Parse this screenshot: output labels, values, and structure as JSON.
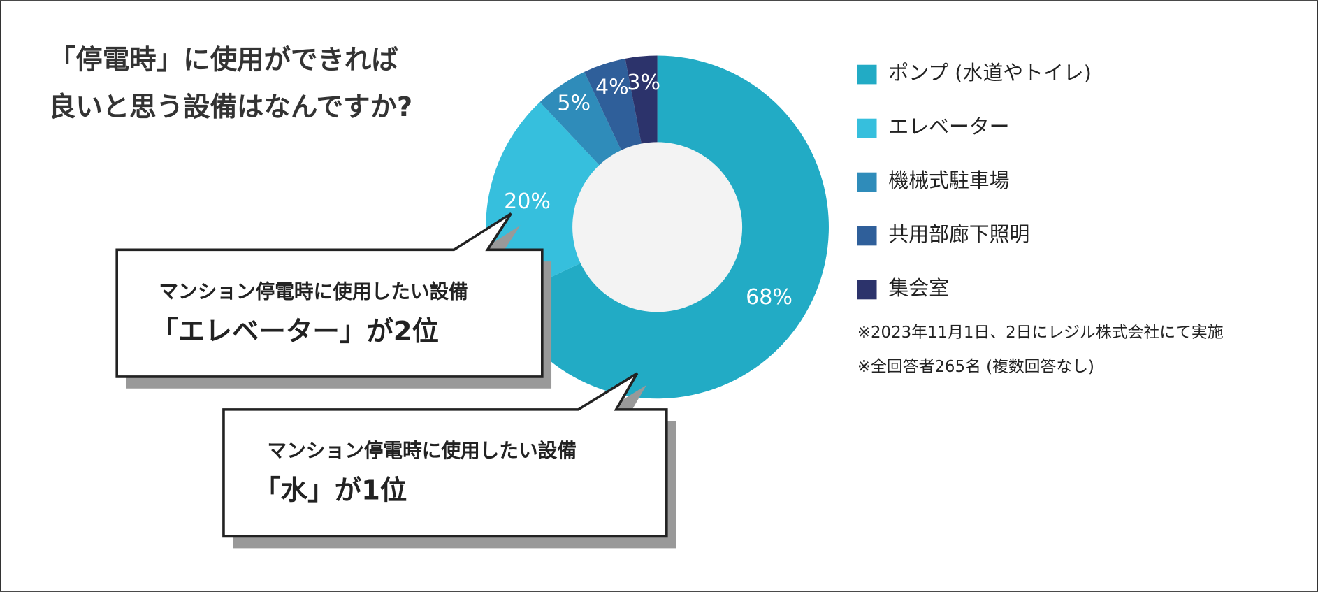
{
  "chart_data": {
    "type": "pie",
    "donut": true,
    "title": [
      "「停電時」に使用ができれば",
      "良いと思う設備はなんですか?"
    ],
    "categories": [
      "ポンプ (水道やトイレ)",
      "エレベーター",
      "機械式駐車場",
      "共用部廊下照明",
      "集会室"
    ],
    "values": [
      68,
      20,
      5,
      4,
      3
    ],
    "value_labels": [
      "68%",
      "20%",
      "5%",
      "4%",
      "3%"
    ],
    "colors": [
      "#22abc5",
      "#36bfdd",
      "#2f8cba",
      "#2f5f9a",
      "#2c336b"
    ],
    "legend": "right",
    "notes": [
      "※2023年11月1日、2日にレジル株式会社にて実施",
      "※全回答者265名 (複数回答なし)"
    ],
    "annotations": [
      {
        "lines": [
          "マンション停電時に使用したい設備",
          "「エレベーター」が2位"
        ]
      },
      {
        "lines": [
          "マンション停電時に使用したい設備",
          "「水」が1位"
        ]
      }
    ]
  }
}
